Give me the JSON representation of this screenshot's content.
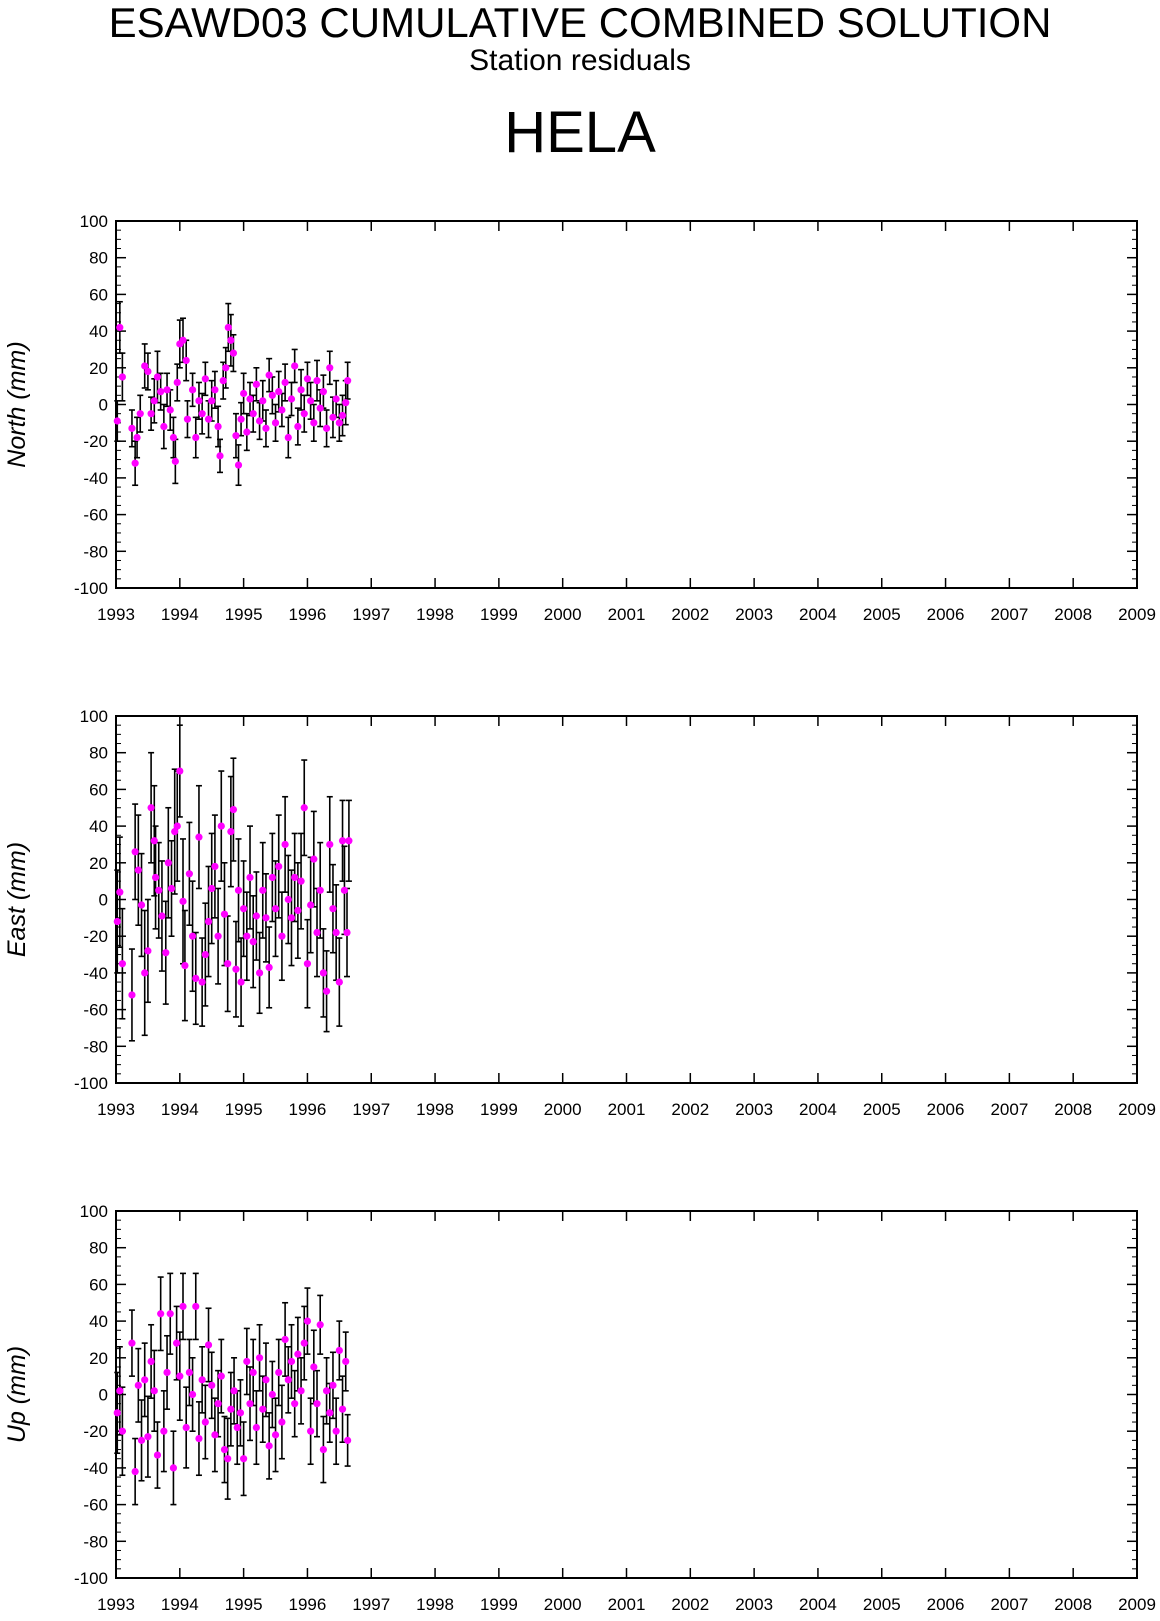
{
  "header": {
    "title": "ESAWD03 CUMULATIVE COMBINED SOLUTION",
    "subtitle": "Station residuals",
    "station": "HELA"
  },
  "colors": {
    "point": "#ff00ff",
    "errorbar": "#000000",
    "axis": "#000000"
  },
  "chart_data": [
    {
      "type": "scatter",
      "ylabel": "North (mm)",
      "ylim": [
        -100,
        100
      ],
      "xlim": [
        1993,
        2009
      ],
      "yticks": [
        "100",
        "80",
        "60",
        "40",
        "20",
        "0",
        "-20",
        "-40",
        "-60",
        "-80",
        "-100"
      ],
      "xticks": [
        "1993",
        "1994",
        "1995",
        "1996",
        "1997",
        "1998",
        "1999",
        "2000",
        "2001",
        "2002",
        "2003",
        "2004",
        "2005",
        "2006",
        "2007",
        "2008",
        "2009"
      ],
      "grid": false,
      "error_bars": true,
      "points": [
        [
          1993.02,
          -9,
          11
        ],
        [
          1993.06,
          42,
          14
        ],
        [
          1993.1,
          15,
          13
        ],
        [
          1993.25,
          -13,
          10
        ],
        [
          1993.3,
          -32,
          12
        ],
        [
          1993.33,
          -18,
          11
        ],
        [
          1993.38,
          -5,
          10
        ],
        [
          1993.45,
          21,
          12
        ],
        [
          1993.5,
          18,
          10
        ],
        [
          1993.55,
          -5,
          9
        ],
        [
          1993.6,
          2,
          12
        ],
        [
          1993.65,
          15,
          14
        ],
        [
          1993.7,
          7,
          10
        ],
        [
          1993.75,
          -12,
          12
        ],
        [
          1993.8,
          8,
          9
        ],
        [
          1993.85,
          -3,
          11
        ],
        [
          1993.9,
          -18,
          11
        ],
        [
          1993.93,
          -31,
          12
        ],
        [
          1993.96,
          12,
          10
        ],
        [
          1994.0,
          33,
          13
        ],
        [
          1994.05,
          35,
          12
        ],
        [
          1994.1,
          24,
          11
        ],
        [
          1994.12,
          -8,
          10
        ],
        [
          1994.2,
          8,
          9
        ],
        [
          1994.25,
          -18,
          11
        ],
        [
          1994.3,
          2,
          10
        ],
        [
          1994.35,
          -5,
          11
        ],
        [
          1994.4,
          14,
          9
        ],
        [
          1994.45,
          -8,
          10
        ],
        [
          1994.5,
          2,
          11
        ],
        [
          1994.55,
          8,
          10
        ],
        [
          1994.6,
          -12,
          11
        ],
        [
          1994.63,
          -28,
          9
        ],
        [
          1994.68,
          13,
          10
        ],
        [
          1994.72,
          20,
          11
        ],
        [
          1994.76,
          42,
          13
        ],
        [
          1994.8,
          35,
          14
        ],
        [
          1994.84,
          28,
          10
        ],
        [
          1994.88,
          -17,
          12
        ],
        [
          1994.92,
          -33,
          11
        ],
        [
          1994.96,
          -8,
          9
        ],
        [
          1995.0,
          6,
          11
        ],
        [
          1995.05,
          -15,
          10
        ],
        [
          1995.1,
          3,
          9
        ],
        [
          1995.15,
          -5,
          10
        ],
        [
          1995.2,
          11,
          9
        ],
        [
          1995.25,
          -9,
          10
        ],
        [
          1995.3,
          2,
          11
        ],
        [
          1995.35,
          -13,
          10
        ],
        [
          1995.4,
          16,
          9
        ],
        [
          1995.45,
          5,
          10
        ],
        [
          1995.5,
          -10,
          10
        ],
        [
          1995.55,
          7,
          11
        ],
        [
          1995.6,
          -3,
          9
        ],
        [
          1995.65,
          12,
          10
        ],
        [
          1995.7,
          -18,
          11
        ],
        [
          1995.75,
          3,
          9
        ],
        [
          1995.8,
          21,
          9
        ],
        [
          1995.85,
          -12,
          10
        ],
        [
          1995.9,
          8,
          11
        ],
        [
          1995.95,
          -5,
          10
        ],
        [
          1996.0,
          14,
          9
        ],
        [
          1996.05,
          2,
          10
        ],
        [
          1996.1,
          -10,
          10
        ],
        [
          1996.15,
          13,
          11
        ],
        [
          1996.2,
          -2,
          10
        ],
        [
          1996.25,
          7,
          9
        ],
        [
          1996.3,
          -13,
          10
        ],
        [
          1996.35,
          20,
          9
        ],
        [
          1996.4,
          -7,
          11
        ],
        [
          1996.45,
          3,
          10
        ],
        [
          1996.5,
          -10,
          10
        ],
        [
          1996.55,
          -6,
          11
        ],
        [
          1996.6,
          1,
          12
        ],
        [
          1996.63,
          13,
          10
        ]
      ]
    },
    {
      "type": "scatter",
      "ylabel": "East (mm)",
      "ylim": [
        -100,
        100
      ],
      "xlim": [
        1993,
        2009
      ],
      "yticks": [
        "100",
        "80",
        "60",
        "40",
        "20",
        "0",
        "-20",
        "-40",
        "-60",
        "-80",
        "-100"
      ],
      "xticks": [
        "1993",
        "1994",
        "1995",
        "1996",
        "1997",
        "1998",
        "1999",
        "2000",
        "2001",
        "2002",
        "2003",
        "2004",
        "2005",
        "2006",
        "2007",
        "2008",
        "2009"
      ],
      "grid": false,
      "error_bars": true,
      "points": [
        [
          1993.02,
          -12,
          28
        ],
        [
          1993.06,
          4,
          30
        ],
        [
          1993.1,
          -35,
          30
        ],
        [
          1993.25,
          -52,
          25
        ],
        [
          1993.3,
          26,
          26
        ],
        [
          1993.35,
          16,
          30
        ],
        [
          1993.4,
          -3,
          28
        ],
        [
          1993.45,
          -40,
          34
        ],
        [
          1993.5,
          -28,
          28
        ],
        [
          1993.55,
          50,
          30
        ],
        [
          1993.6,
          32,
          30
        ],
        [
          1993.62,
          12,
          28
        ],
        [
          1993.67,
          5,
          26
        ],
        [
          1993.72,
          -9,
          30
        ],
        [
          1993.78,
          -29,
          28
        ],
        [
          1993.82,
          20,
          30
        ],
        [
          1993.87,
          6,
          26
        ],
        [
          1993.92,
          37,
          34
        ],
        [
          1993.96,
          40,
          30
        ],
        [
          1994.0,
          70,
          25
        ],
        [
          1994.05,
          -1,
          34
        ],
        [
          1994.08,
          -36,
          30
        ],
        [
          1994.15,
          14,
          28
        ],
        [
          1994.2,
          -20,
          30
        ],
        [
          1994.25,
          -43,
          25
        ],
        [
          1994.3,
          34,
          28
        ],
        [
          1994.35,
          -45,
          24
        ],
        [
          1994.4,
          -30,
          28
        ],
        [
          1994.45,
          -12,
          30
        ],
        [
          1994.5,
          6,
          30
        ],
        [
          1994.55,
          18,
          28
        ],
        [
          1994.6,
          -20,
          26
        ],
        [
          1994.65,
          40,
          30
        ],
        [
          1994.7,
          -8,
          28
        ],
        [
          1994.75,
          -35,
          26
        ],
        [
          1994.8,
          37,
          30
        ],
        [
          1994.84,
          49,
          28
        ],
        [
          1994.88,
          -38,
          26
        ],
        [
          1994.92,
          5,
          28
        ],
        [
          1994.96,
          -45,
          24
        ],
        [
          1995.0,
          -5,
          26
        ],
        [
          1995.05,
          -20,
          24
        ],
        [
          1995.1,
          12,
          28
        ],
        [
          1995.15,
          -23,
          25
        ],
        [
          1995.2,
          -9,
          24
        ],
        [
          1995.25,
          -40,
          22
        ],
        [
          1995.3,
          5,
          26
        ],
        [
          1995.35,
          -10,
          24
        ],
        [
          1995.4,
          -37,
          22
        ],
        [
          1995.45,
          12,
          24
        ],
        [
          1995.5,
          -5,
          26
        ],
        [
          1995.55,
          18,
          28
        ],
        [
          1995.6,
          -20,
          24
        ],
        [
          1995.65,
          30,
          26
        ],
        [
          1995.7,
          0,
          24
        ],
        [
          1995.75,
          -10,
          26
        ],
        [
          1995.8,
          12,
          24
        ],
        [
          1995.85,
          -6,
          26
        ],
        [
          1995.9,
          10,
          26
        ],
        [
          1995.95,
          50,
          26
        ],
        [
          1996.0,
          -35,
          24
        ],
        [
          1996.05,
          -3,
          26
        ],
        [
          1996.1,
          22,
          26
        ],
        [
          1996.15,
          -18,
          24
        ],
        [
          1996.2,
          5,
          26
        ],
        [
          1996.25,
          -40,
          24
        ],
        [
          1996.3,
          -50,
          22
        ],
        [
          1996.35,
          30,
          26
        ],
        [
          1996.4,
          -5,
          24
        ],
        [
          1996.45,
          -18,
          26
        ],
        [
          1996.5,
          -45,
          24
        ],
        [
          1996.55,
          32,
          22
        ],
        [
          1996.58,
          5,
          24
        ],
        [
          1996.62,
          -18,
          24
        ],
        [
          1996.65,
          32,
          22
        ]
      ]
    },
    {
      "type": "scatter",
      "ylabel": "Up (mm)",
      "ylim": [
        -100,
        100
      ],
      "xlim": [
        1993,
        2009
      ],
      "yticks": [
        "100",
        "80",
        "60",
        "40",
        "20",
        "0",
        "-20",
        "-40",
        "-60",
        "-80",
        "-100"
      ],
      "xticks": [
        "1993",
        "1994",
        "1995",
        "1996",
        "1997",
        "1998",
        "1999",
        "2000",
        "2001",
        "2002",
        "2003",
        "2004",
        "2005",
        "2006",
        "2007",
        "2008",
        "2009"
      ],
      "grid": false,
      "error_bars": true,
      "points": [
        [
          1993.02,
          -10,
          22
        ],
        [
          1993.06,
          2,
          24
        ],
        [
          1993.1,
          -20,
          24
        ],
        [
          1993.25,
          28,
          18
        ],
        [
          1993.3,
          -42,
          18
        ],
        [
          1993.35,
          5,
          20
        ],
        [
          1993.4,
          -25,
          22
        ],
        [
          1993.45,
          8,
          20
        ],
        [
          1993.5,
          -23,
          22
        ],
        [
          1993.55,
          18,
          20
        ],
        [
          1993.6,
          2,
          22
        ],
        [
          1993.65,
          -33,
          18
        ],
        [
          1993.7,
          44,
          20
        ],
        [
          1993.75,
          -20,
          22
        ],
        [
          1993.8,
          12,
          20
        ],
        [
          1993.85,
          44,
          22
        ],
        [
          1993.9,
          -40,
          20
        ],
        [
          1993.95,
          28,
          20
        ],
        [
          1994.0,
          10,
          24
        ],
        [
          1994.05,
          48,
          18
        ],
        [
          1994.1,
          -18,
          22
        ],
        [
          1994.15,
          12,
          18
        ],
        [
          1994.2,
          0,
          20
        ],
        [
          1994.25,
          48,
          18
        ],
        [
          1994.3,
          -24,
          20
        ],
        [
          1994.35,
          8,
          18
        ],
        [
          1994.4,
          -15,
          20
        ],
        [
          1994.45,
          27,
          20
        ],
        [
          1994.5,
          5,
          18
        ],
        [
          1994.55,
          -22,
          20
        ],
        [
          1994.6,
          -5,
          18
        ],
        [
          1994.65,
          10,
          20
        ],
        [
          1994.7,
          -30,
          18
        ],
        [
          1994.75,
          -35,
          22
        ],
        [
          1994.8,
          -8,
          20
        ],
        [
          1994.85,
          2,
          18
        ],
        [
          1994.9,
          -18,
          20
        ],
        [
          1994.95,
          -10,
          18
        ],
        [
          1995.0,
          -35,
          20
        ],
        [
          1995.05,
          18,
          18
        ],
        [
          1995.1,
          -5,
          20
        ],
        [
          1995.15,
          12,
          18
        ],
        [
          1995.2,
          -18,
          20
        ],
        [
          1995.25,
          20,
          18
        ],
        [
          1995.3,
          -8,
          18
        ],
        [
          1995.35,
          8,
          20
        ],
        [
          1995.4,
          -28,
          18
        ],
        [
          1995.45,
          0,
          18
        ],
        [
          1995.5,
          -22,
          20
        ],
        [
          1995.55,
          12,
          18
        ],
        [
          1995.6,
          -15,
          20
        ],
        [
          1995.65,
          30,
          20
        ],
        [
          1995.7,
          8,
          18
        ],
        [
          1995.75,
          18,
          20
        ],
        [
          1995.8,
          -5,
          18
        ],
        [
          1995.85,
          22,
          20
        ],
        [
          1995.9,
          2,
          18
        ],
        [
          1995.95,
          28,
          20
        ],
        [
          1996.0,
          40,
          18
        ],
        [
          1996.05,
          -20,
          18
        ],
        [
          1996.1,
          15,
          20
        ],
        [
          1996.15,
          -5,
          18
        ],
        [
          1996.2,
          38,
          16
        ],
        [
          1996.25,
          -30,
          18
        ],
        [
          1996.3,
          2,
          18
        ],
        [
          1996.35,
          -10,
          16
        ],
        [
          1996.4,
          5,
          18
        ],
        [
          1996.45,
          -20,
          18
        ],
        [
          1996.5,
          24,
          16
        ],
        [
          1996.55,
          -8,
          18
        ],
        [
          1996.6,
          18,
          16
        ],
        [
          1996.63,
          -25,
          14
        ]
      ]
    }
  ]
}
